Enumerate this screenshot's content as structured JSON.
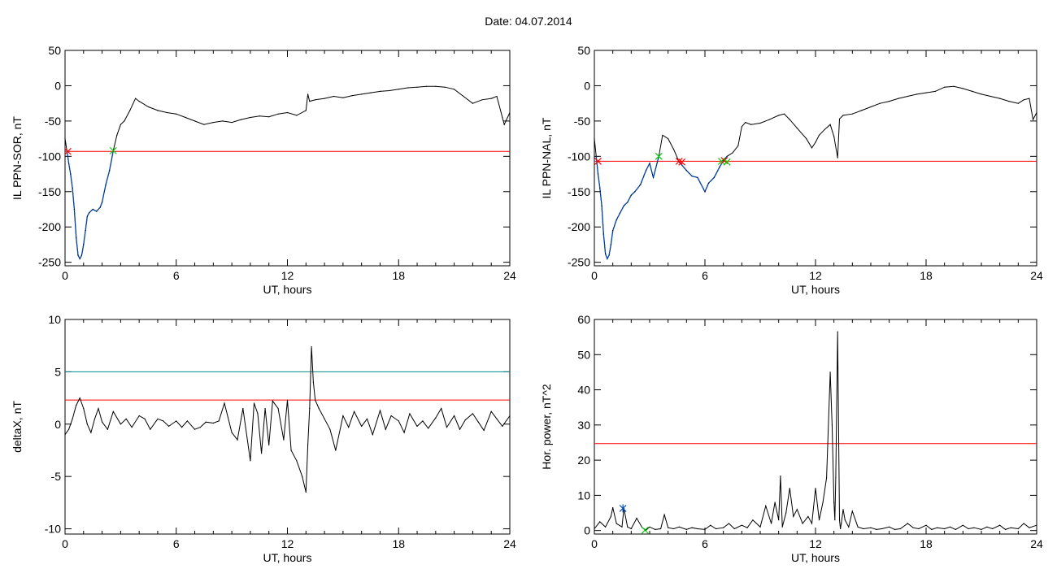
{
  "header": {
    "date_label": "Date:",
    "date_value": "04.07.2014"
  },
  "chart_data": [
    {
      "id": "sor",
      "type": "line",
      "xlabel": "UT, hours",
      "ylabel": "IL PPN-SOR, nT",
      "xlim": [
        0,
        24
      ],
      "ylim": [
        -255,
        50
      ],
      "xticks": [
        0,
        6,
        12,
        18,
        24
      ],
      "yticks": [
        50,
        0,
        -50,
        -100,
        -150,
        -200,
        -250
      ],
      "threshold": {
        "y": -93,
        "color": "#ff0000"
      },
      "series_color": "#000000",
      "highlight_color": "#0050c8",
      "highlight_ranges": [
        [
          0.1,
          2.6
        ]
      ],
      "markers": [
        {
          "x": 0.15,
          "y": -93,
          "color": "#ff0000",
          "shape": "x"
        },
        {
          "x": 2.6,
          "y": -92,
          "color": "#00cc00",
          "shape": "x"
        }
      ],
      "x": [
        0,
        0.1,
        0.2,
        0.3,
        0.4,
        0.5,
        0.6,
        0.7,
        0.8,
        0.9,
        1.0,
        1.1,
        1.2,
        1.3,
        1.5,
        1.7,
        1.9,
        2.0,
        2.2,
        2.4,
        2.6,
        2.8,
        3.0,
        3.2,
        3.5,
        3.8,
        4.0,
        4.5,
        5.0,
        5.5,
        6.0,
        6.5,
        7.0,
        7.5,
        8.0,
        8.5,
        9.0,
        9.5,
        10.0,
        10.5,
        11.0,
        11.5,
        12.0,
        12.5,
        13.0,
        13.1,
        13.2,
        13.5,
        14.0,
        14.5,
        15.0,
        15.5,
        16.0,
        16.5,
        17.0,
        17.5,
        18.0,
        18.5,
        19.0,
        19.5,
        20.0,
        20.5,
        21.0,
        21.5,
        22.0,
        22.5,
        23.0,
        23.3,
        23.6,
        23.7,
        24.0
      ],
      "y": [
        -75,
        -92,
        -110,
        -125,
        -145,
        -175,
        -215,
        -240,
        -245,
        -240,
        -225,
        -205,
        -185,
        -180,
        -175,
        -178,
        -172,
        -165,
        -140,
        -120,
        -92,
        -70,
        -55,
        -50,
        -35,
        -18,
        -22,
        -30,
        -35,
        -38,
        -40,
        -45,
        -50,
        -55,
        -52,
        -50,
        -52,
        -48,
        -45,
        -43,
        -44,
        -40,
        -38,
        -42,
        -35,
        -12,
        -22,
        -20,
        -18,
        -15,
        -17,
        -14,
        -12,
        -10,
        -8,
        -7,
        -5,
        -3,
        -2,
        -1,
        -1,
        -2,
        -5,
        -15,
        -25,
        -20,
        -18,
        -15,
        -45,
        -55,
        -38
      ]
    },
    {
      "id": "nal",
      "type": "line",
      "xlabel": "UT, hours",
      "ylabel": "IL PPN-NAL, nT",
      "xlim": [
        0,
        24
      ],
      "ylim": [
        -255,
        50
      ],
      "xticks": [
        0,
        6,
        12,
        18,
        24
      ],
      "yticks": [
        50,
        0,
        -50,
        -100,
        -150,
        -200,
        -250
      ],
      "threshold": {
        "y": -107,
        "color": "#ff0000"
      },
      "series_color": "#000000",
      "highlight_color": "#0050c8",
      "highlight_ranges": [
        [
          0.1,
          3.5
        ],
        [
          4.6,
          7.2
        ]
      ],
      "markers": [
        {
          "x": 0.2,
          "y": -107,
          "color": "#ff0000",
          "shape": "x"
        },
        {
          "x": 3.5,
          "y": -100,
          "color": "#00cc00",
          "shape": "x"
        },
        {
          "x": 4.6,
          "y": -107,
          "color": "#ff0000",
          "shape": "x"
        },
        {
          "x": 4.75,
          "y": -108,
          "color": "#ff0000",
          "shape": "x"
        },
        {
          "x": 6.9,
          "y": -107,
          "color": "#00cc00",
          "shape": "x"
        },
        {
          "x": 7.05,
          "y": -106,
          "color": "#ff0000",
          "shape": "x"
        },
        {
          "x": 7.2,
          "y": -108,
          "color": "#00cc00",
          "shape": "x"
        }
      ],
      "x": [
        0,
        0.1,
        0.2,
        0.3,
        0.4,
        0.5,
        0.6,
        0.7,
        0.8,
        0.9,
        1.0,
        1.2,
        1.4,
        1.6,
        1.8,
        2.0,
        2.2,
        2.5,
        2.8,
        3.0,
        3.2,
        3.5,
        3.7,
        4.0,
        4.3,
        4.6,
        5.0,
        5.3,
        5.6,
        6.0,
        6.2,
        6.5,
        6.8,
        7.0,
        7.2,
        7.5,
        7.8,
        8.0,
        8.2,
        8.5,
        9.0,
        9.5,
        10.0,
        10.3,
        10.6,
        11.0,
        11.5,
        11.8,
        12.0,
        12.2,
        12.5,
        12.8,
        13.0,
        13.2,
        13.3,
        13.5,
        14.0,
        14.5,
        15.0,
        15.5,
        16.0,
        16.5,
        17.0,
        17.5,
        18.0,
        18.5,
        19.0,
        19.5,
        20.0,
        20.5,
        21.0,
        21.5,
        22.0,
        22.5,
        23.0,
        23.3,
        23.6,
        23.8,
        24.0
      ],
      "y": [
        -75,
        -100,
        -125,
        -145,
        -170,
        -210,
        -238,
        -245,
        -240,
        -225,
        -205,
        -190,
        -180,
        -170,
        -165,
        -155,
        -150,
        -140,
        -120,
        -110,
        -130,
        -100,
        -70,
        -75,
        -90,
        -108,
        -120,
        -128,
        -130,
        -150,
        -138,
        -130,
        -115,
        -106,
        -100,
        -95,
        -85,
        -58,
        -52,
        -55,
        -53,
        -48,
        -42,
        -40,
        -48,
        -60,
        -75,
        -88,
        -80,
        -70,
        -62,
        -55,
        -72,
        -102,
        -47,
        -42,
        -40,
        -35,
        -30,
        -25,
        -22,
        -18,
        -15,
        -12,
        -10,
        -8,
        -2,
        -1,
        -4,
        -8,
        -12,
        -15,
        -18,
        -22,
        -25,
        -20,
        -18,
        -48,
        -38
      ]
    },
    {
      "id": "deltax",
      "type": "line",
      "xlabel": "UT, hours",
      "ylabel": "deltaX, nT",
      "xlim": [
        0,
        24
      ],
      "ylim": [
        -10.5,
        10
      ],
      "xticks": [
        0,
        6,
        12,
        18,
        24
      ],
      "yticks": [
        10,
        5,
        0,
        -5,
        -10
      ],
      "threshold": {
        "y": 2.3,
        "color": "#ff0000"
      },
      "threshold2": {
        "y": 5,
        "color": "#008c8c"
      },
      "series_color": "#000000",
      "highlight_ranges": [],
      "markers": [],
      "x": [
        0,
        0.2,
        0.4,
        0.6,
        0.8,
        1.0,
        1.2,
        1.4,
        1.6,
        1.8,
        2.0,
        2.3,
        2.6,
        3.0,
        3.3,
        3.6,
        4.0,
        4.3,
        4.6,
        5.0,
        5.3,
        5.6,
        6.0,
        6.3,
        6.6,
        7.0,
        7.3,
        7.6,
        8.0,
        8.3,
        8.6,
        9.0,
        9.3,
        9.6,
        10.0,
        10.2,
        10.4,
        10.6,
        10.8,
        11.0,
        11.2,
        11.5,
        11.8,
        12.0,
        12.2,
        12.5,
        12.8,
        13.0,
        13.1,
        13.2,
        13.3,
        13.4,
        13.5,
        13.7,
        14.0,
        14.3,
        14.6,
        15.0,
        15.3,
        15.6,
        16.0,
        16.3,
        16.6,
        17.0,
        17.3,
        17.6,
        18.0,
        18.3,
        18.6,
        19.0,
        19.3,
        19.6,
        20.0,
        20.3,
        20.6,
        21.0,
        21.3,
        21.6,
        22.0,
        22.3,
        22.6,
        23.0,
        23.3,
        23.6,
        24.0
      ],
      "y": [
        -1,
        -0.5,
        0.5,
        1.8,
        2.5,
        1.5,
        0,
        -0.8,
        0.5,
        1.5,
        0.2,
        -0.5,
        1.2,
        0,
        0.5,
        -0.3,
        0.8,
        0.5,
        -0.5,
        0.5,
        0.3,
        -0.2,
        0.3,
        -0.3,
        0.3,
        -0.5,
        -0.3,
        0.2,
        0.1,
        0.3,
        2.0,
        -0.8,
        -1.5,
        1.5,
        -3.5,
        2.0,
        1.0,
        -2.8,
        1.5,
        -2.0,
        2.2,
        1.5,
        -1.5,
        2.3,
        -2.5,
        -3.5,
        -5.0,
        -6.5,
        -2.0,
        1.5,
        7.4,
        4.0,
        2.3,
        1.5,
        0.5,
        -0.5,
        -2.5,
        0.8,
        -0.3,
        1.2,
        -0.2,
        0.5,
        -1.0,
        1.3,
        -0.5,
        0.8,
        0.3,
        -0.8,
        1.0,
        -0.2,
        0.3,
        -0.4,
        0.6,
        1.5,
        -0.3,
        0.8,
        -0.5,
        0.4,
        1.0,
        0.2,
        -0.6,
        1.2,
        0.5,
        -0.2,
        0.8
      ]
    },
    {
      "id": "power",
      "type": "line",
      "xlabel": "UT, hours",
      "ylabel": "Hor. power, nT^2",
      "xlim": [
        0,
        24
      ],
      "ylim": [
        -1,
        60
      ],
      "xticks": [
        0,
        6,
        12,
        18,
        24
      ],
      "yticks": [
        60,
        50,
        40,
        30,
        20,
        10,
        0
      ],
      "threshold": {
        "y": 24.7,
        "color": "#ff0000"
      },
      "series_color": "#000000",
      "highlight_ranges": [],
      "markers": [
        {
          "x": 1.55,
          "y": 6.3,
          "color": "#0050c8",
          "shape": "star"
        },
        {
          "x": 2.75,
          "y": 0.1,
          "color": "#00cc00",
          "shape": "x"
        }
      ],
      "x": [
        0,
        0.3,
        0.6,
        0.9,
        1.0,
        1.2,
        1.5,
        1.6,
        1.8,
        2.0,
        2.3,
        2.6,
        2.8,
        3.0,
        3.3,
        3.6,
        3.8,
        4.0,
        4.3,
        4.6,
        5.0,
        5.3,
        5.6,
        6.0,
        6.3,
        6.6,
        7.0,
        7.3,
        7.6,
        8.0,
        8.3,
        8.6,
        9.0,
        9.3,
        9.6,
        9.8,
        10.0,
        10.1,
        10.2,
        10.4,
        10.6,
        10.8,
        11.0,
        11.3,
        11.6,
        11.8,
        12.0,
        12.2,
        12.4,
        12.6,
        12.8,
        12.9,
        13.0,
        13.05,
        13.1,
        13.2,
        13.3,
        13.35,
        13.4,
        13.5,
        13.6,
        13.8,
        14.0,
        14.3,
        14.6,
        15.0,
        15.3,
        15.6,
        16.0,
        16.3,
        16.6,
        17.0,
        17.3,
        17.6,
        18.0,
        18.3,
        18.6,
        19.0,
        19.3,
        19.6,
        20.0,
        20.3,
        20.6,
        21.0,
        21.3,
        21.6,
        22.0,
        22.3,
        22.6,
        23.0,
        23.3,
        23.6,
        24.0
      ],
      "y": [
        0.5,
        2.5,
        1.0,
        4.0,
        6.5,
        2.0,
        1.0,
        6.3,
        1.0,
        0.5,
        3.5,
        0.8,
        0.1,
        1.0,
        0.3,
        0.5,
        4.5,
        0.8,
        0.5,
        1.0,
        0.3,
        0.8,
        0.5,
        0.3,
        1.5,
        0.5,
        0.8,
        2.0,
        0.5,
        1.5,
        0.8,
        3.0,
        1.0,
        7.0,
        2.0,
        8.0,
        3.0,
        15.5,
        1.0,
        5.0,
        12.0,
        4.0,
        6.0,
        2.0,
        4.0,
        2.0,
        12.0,
        3.0,
        8.0,
        15.0,
        45.0,
        30.0,
        8.0,
        3.0,
        15.0,
        56.5,
        3.0,
        0.5,
        2.0,
        6.0,
        3.0,
        1.0,
        5.5,
        1.0,
        0.5,
        0.8,
        0.3,
        0.5,
        1.0,
        0.3,
        0.5,
        2.0,
        0.8,
        0.5,
        1.5,
        0.3,
        0.8,
        0.5,
        1.0,
        0.3,
        1.5,
        0.5,
        0.8,
        0.3,
        1.0,
        0.5,
        1.5,
        0.3,
        0.8,
        0.5,
        2.0,
        0.8,
        1.5
      ]
    }
  ]
}
